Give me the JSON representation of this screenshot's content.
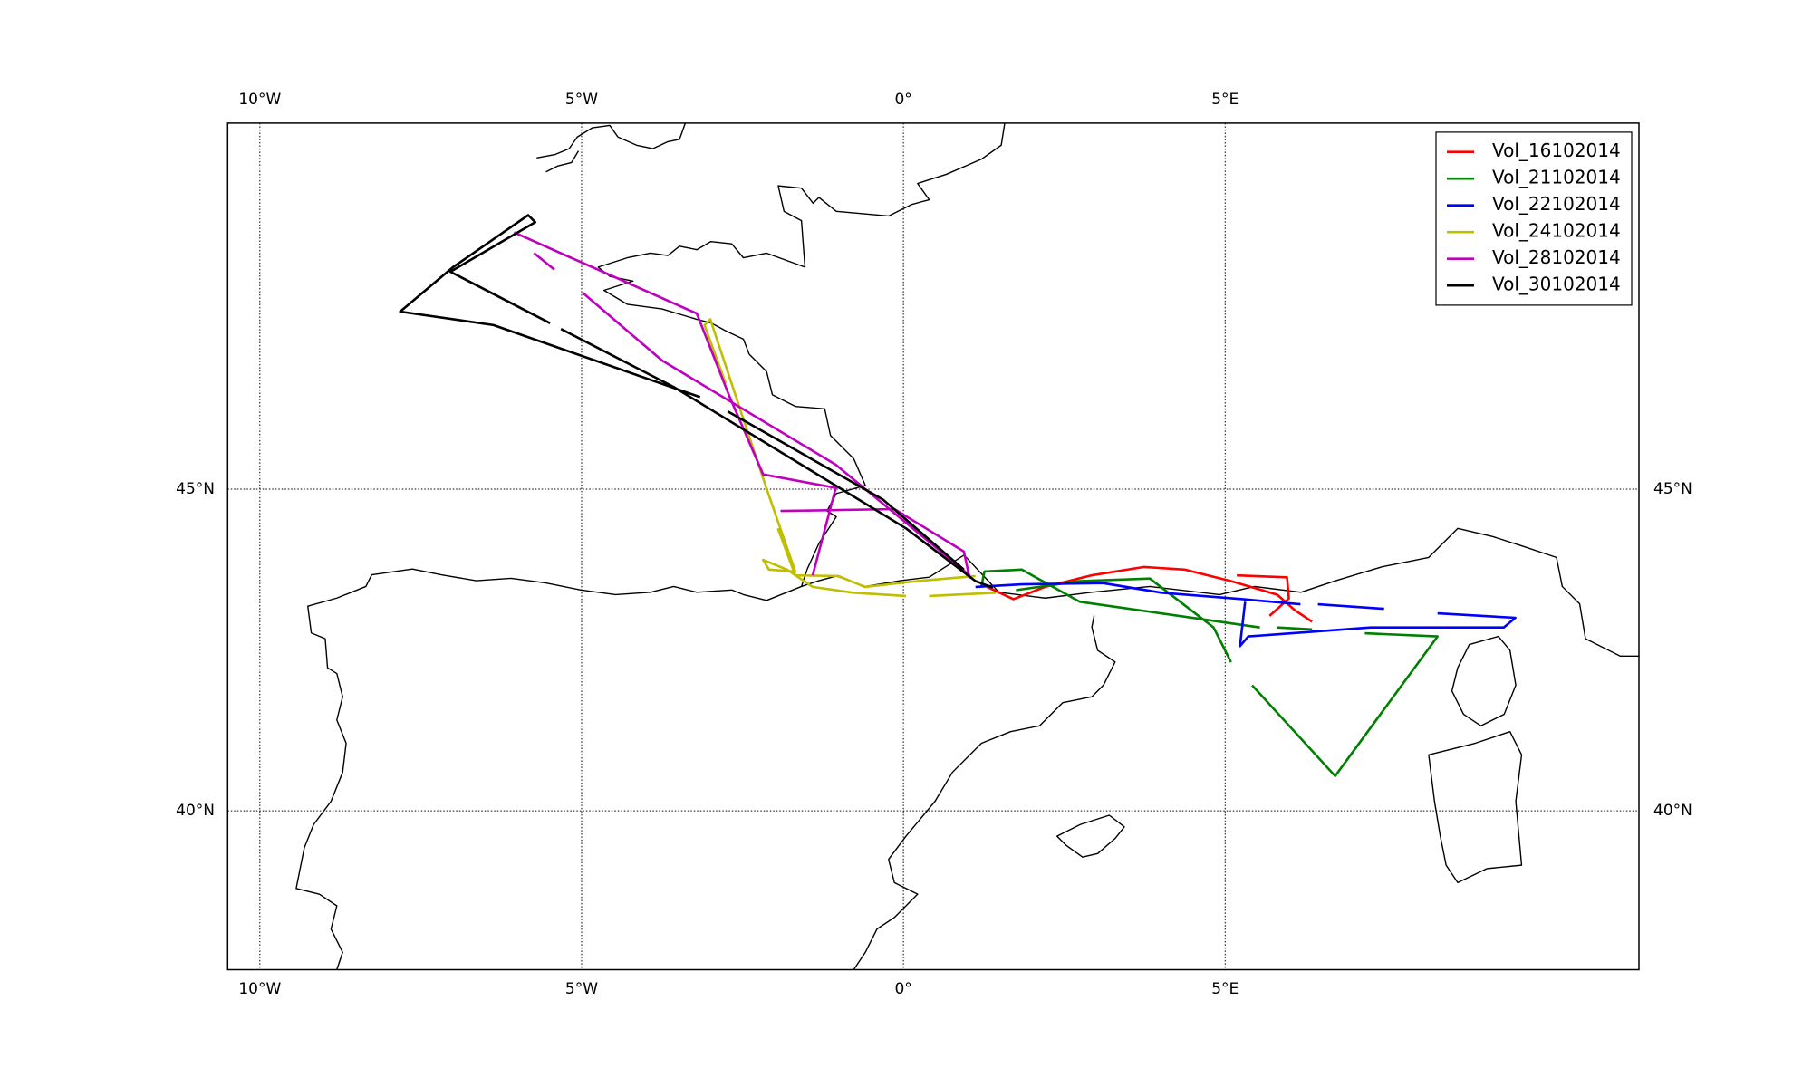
{
  "chart_data": {
    "type": "line",
    "xlim": [
      -10.5,
      11.43
    ],
    "ylim": [
      37.53,
      50.69
    ],
    "xticks": [
      {
        "value": -10,
        "label": "10°W"
      },
      {
        "value": -5,
        "label": "5°W"
      },
      {
        "value": 0,
        "label": "0°"
      },
      {
        "value": 5,
        "label": "5°E"
      }
    ],
    "yticks": [
      {
        "value": 40,
        "label": "40°N"
      },
      {
        "value": 45,
        "label": "45°N"
      }
    ],
    "grid": true,
    "legend": "upper right",
    "series": [
      {
        "name": "Vol_16102014",
        "color": "#ff0000",
        "x": [
          1.3,
          1.71,
          2.2,
          2.92,
          3.74,
          4.37,
          5.09,
          5.81,
          6.08,
          6.35,
          null,
          5.18,
          5.96,
          5.99,
          5.69
        ],
        "y": [
          43.48,
          43.29,
          43.48,
          43.66,
          43.79,
          43.75,
          43.57,
          43.36,
          43.12,
          42.94,
          null,
          43.66,
          43.63,
          43.3,
          43.03
        ]
      },
      {
        "name": "Vol_21102014",
        "color": "#008000",
        "x": [
          1.21,
          1.26,
          1.84,
          2.74,
          5.54,
          null,
          5.81,
          6.35,
          null,
          7.17,
          8.3,
          6.71,
          5.42,
          null,
          5.09,
          4.82,
          3.83,
          2.74,
          1.75
        ],
        "y": [
          43.48,
          43.72,
          43.75,
          43.25,
          42.85,
          null,
          42.85,
          42.82,
          null,
          42.76,
          42.71,
          40.54,
          41.95,
          null,
          42.31,
          42.85,
          43.61,
          43.57,
          43.43
        ]
      },
      {
        "name": "Vol_22102014",
        "color": "#0000ff",
        "x": [
          1.12,
          1.84,
          3.1,
          4.01,
          5.27,
          6.17,
          null,
          6.44,
          7.47,
          null,
          8.3,
          9.51,
          9.33,
          7.26,
          5.36,
          5.23,
          5.31
        ],
        "y": [
          43.48,
          43.52,
          43.54,
          43.39,
          43.29,
          43.21,
          null,
          43.21,
          43.14,
          null,
          43.07,
          43.0,
          42.85,
          42.85,
          42.71,
          42.56,
          43.25
        ]
      },
      {
        "name": "Vol_24102014",
        "color": "#bfbf00",
        "x": [
          1.44,
          0.4,
          null,
          0.04,
          -0.78,
          -1.41,
          -1.81,
          -2.18,
          -2.09,
          -1.68,
          -2.13,
          -2.49,
          -3.0,
          -3.09,
          -2.76,
          null,
          -1.95,
          -1.68,
          -1.01,
          -0.6,
          0.22,
          1.12
        ],
        "y": [
          43.39,
          43.34,
          null,
          43.34,
          43.39,
          43.48,
          43.75,
          43.9,
          43.75,
          43.72,
          45.02,
          46.1,
          47.64,
          47.55,
          46.64,
          null,
          44.39,
          43.66,
          43.65,
          43.48,
          43.57,
          43.65
        ]
      },
      {
        "name": "Vol_28102014",
        "color": "#bf00bf",
        "x": [
          -6.05,
          -3.21,
          -2.71,
          -2.18,
          -1.05,
          -1.41,
          null,
          -4.98,
          -3.75,
          -1.05,
          1.03,
          null,
          -1.91,
          -0.14,
          0.94,
          1.03,
          null,
          -5.74,
          -5.42
        ],
        "y": [
          48.99,
          47.73,
          46.46,
          45.23,
          45.02,
          43.66,
          null,
          48.05,
          47.0,
          45.38,
          43.66,
          null,
          44.66,
          44.69,
          44.03,
          43.61,
          null,
          48.67,
          48.41
        ]
      },
      {
        "name": "Vol_30102014",
        "color": "#000000",
        "x": [
          -3.16,
          -6.37,
          -7.82,
          -7.0,
          -5.83,
          -5.72,
          -7.04,
          -5.49,
          null,
          -5.32,
          -3.57,
          0.04,
          1.12,
          1.39,
          null,
          -2.73,
          -0.32,
          0.94
        ],
        "y": [
          46.43,
          47.55,
          47.76,
          48.45,
          49.26,
          49.15,
          48.38,
          47.58,
          null,
          47.49,
          46.59,
          44.39,
          43.57,
          43.47,
          null,
          46.21,
          44.84,
          43.75
        ]
      }
    ]
  }
}
